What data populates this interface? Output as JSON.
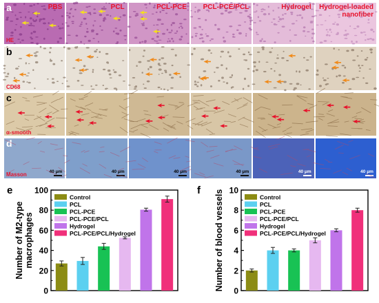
{
  "panels": {
    "a": {
      "letter": "a",
      "row_tag": "HE"
    },
    "b": {
      "letter": "b",
      "row_tag": "CD68"
    },
    "c": {
      "letter": "c",
      "row_tag": "α-smooth"
    },
    "d": {
      "letter": "d",
      "row_tag": "Masson",
      "scale_text": "40 μm"
    },
    "e": {
      "letter": "e"
    },
    "f": {
      "letter": "f"
    }
  },
  "columns": [
    "PBS",
    "PCL",
    "PCL-PCE",
    "PCL-PCE/PCL",
    "Hydrogel",
    "Hydrogel-loaded nanofiber"
  ],
  "colors": {
    "he_bg": "#d9a6c9",
    "he_dark": "#8a3c8a",
    "cd68_bg": "#e9e4dc",
    "cd68_dot": "#6e5a48",
    "sma_bg": "#d8c6a4",
    "sma_line": "#7a5a36",
    "masson_bg": "#7d9cc8",
    "masson_dark": "#2e5cbf",
    "arrow_yellow": "#f5e01c",
    "arrow_orange": "#f08a1a",
    "arrow_red": "#e8102a"
  },
  "chart_data": [
    {
      "type": "bar",
      "panel": "e",
      "ylabel": "Number of M2-type macrophages",
      "ylim": [
        0,
        100
      ],
      "yticks": [
        0,
        20,
        40,
        60,
        80,
        100
      ],
      "categories": [
        "Control",
        "PCL",
        "PCL-PCE",
        "PCL-PCE/PCL",
        "Hydrogel",
        "PCL-PCE/PCL/Hydrogel"
      ],
      "values": [
        27,
        29.5,
        44,
        52.5,
        80.5,
        91
      ],
      "errors": [
        2.5,
        3.5,
        3,
        1,
        1.5,
        3
      ],
      "colors": [
        "#8c8c14",
        "#5cd0f0",
        "#18c254",
        "#e6b8f0",
        "#c074ea",
        "#f0307a"
      ],
      "legend": [
        "Control",
        "PCL",
        "PCL-PCE",
        "PCL-PCE/PCL",
        "Hydrogel",
        "PCL-PCE/PCL/Hydrogel"
      ],
      "legend_position": "top-left"
    },
    {
      "type": "bar",
      "panel": "f",
      "ylabel": "Number of blood vessels",
      "ylim": [
        0,
        10
      ],
      "yticks": [
        0,
        2,
        4,
        6,
        8,
        10
      ],
      "categories": [
        "Control",
        "PCL",
        "PCL-PCE",
        "PCL-PCE/PCL",
        "Hydrogel",
        "PCL-PCE/PCL/Hydrogel"
      ],
      "values": [
        2,
        4,
        4,
        5,
        6,
        8
      ],
      "errors": [
        0.15,
        0.3,
        0.15,
        0.25,
        0.15,
        0.2
      ],
      "colors": [
        "#8c8c14",
        "#5cd0f0",
        "#18c254",
        "#e6b8f0",
        "#c074ea",
        "#f0307a"
      ],
      "legend": [
        "Control",
        "PCL",
        "PCL-PCE",
        "PCL-PCE/PCL",
        "Hydrogel",
        "PCL-PCE/PCL/Hydrogel"
      ],
      "legend_position": "top-left"
    }
  ]
}
